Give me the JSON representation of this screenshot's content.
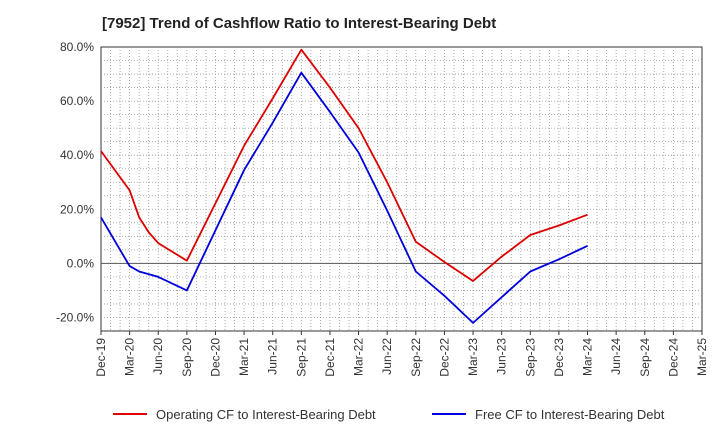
{
  "chart_data": {
    "type": "line",
    "title": "[7952]  Trend of Cashflow Ratio to Interest-Bearing Debt",
    "xlabel": "",
    "ylabel": "",
    "ylim": [
      -25,
      80
    ],
    "y_ticks": [
      -20,
      0,
      20,
      40,
      60,
      80
    ],
    "y_tick_labels": [
      "-20.0%",
      "0.0%",
      "20.0%",
      "40.0%",
      "60.0%",
      "80.0%"
    ],
    "x_tick_labels": [
      "Dec-19",
      "Mar-20",
      "Jun-20",
      "Sep-20",
      "Dec-20",
      "Mar-21",
      "Jun-21",
      "Sep-21",
      "Dec-21",
      "Mar-22",
      "Jun-22",
      "Sep-22",
      "Dec-22",
      "Mar-23",
      "Jun-23",
      "Sep-23",
      "Dec-23",
      "Mar-24",
      "Jun-24",
      "Sep-24",
      "Dec-24",
      "Mar-25"
    ],
    "grid": true,
    "legend_position": "bottom",
    "series": [
      {
        "name": "Operating CF to Interest-Bearing Debt",
        "color": "#dd0000",
        "points": [
          {
            "m": 0,
            "v": 41.5
          },
          {
            "m": 3,
            "v": 27.0
          },
          {
            "m": 4,
            "v": 17.0
          },
          {
            "m": 5,
            "v": 11.5
          },
          {
            "m": 6,
            "v": 7.5
          },
          {
            "m": 9,
            "v": 1.0
          },
          {
            "m": 15,
            "v": 43.5
          },
          {
            "m": 18,
            "v": 61.0
          },
          {
            "m": 21,
            "v": 79.0
          },
          {
            "m": 24,
            "v": 65.0
          },
          {
            "m": 27,
            "v": 50.0
          },
          {
            "m": 30,
            "v": 30.0
          },
          {
            "m": 33,
            "v": 8.0
          },
          {
            "m": 36,
            "v": 0.5
          },
          {
            "m": 39,
            "v": -6.5
          },
          {
            "m": 42,
            "v": 2.5
          },
          {
            "m": 45,
            "v": 10.5
          },
          {
            "m": 48,
            "v": 14.0
          },
          {
            "m": 51,
            "v": 18.0
          }
        ]
      },
      {
        "name": "Free CF to Interest-Bearing Debt",
        "color": "#0000dd",
        "points": [
          {
            "m": 0,
            "v": 17.0
          },
          {
            "m": 3,
            "v": -1.0
          },
          {
            "m": 4,
            "v": -3.0
          },
          {
            "m": 6,
            "v": -5.0
          },
          {
            "m": 9,
            "v": -10.0
          },
          {
            "m": 15,
            "v": 34.5
          },
          {
            "m": 18,
            "v": 52.0
          },
          {
            "m": 21,
            "v": 70.5
          },
          {
            "m": 24,
            "v": 56.0
          },
          {
            "m": 27,
            "v": 41.0
          },
          {
            "m": 30,
            "v": 19.5
          },
          {
            "m": 33,
            "v": -3.0
          },
          {
            "m": 36,
            "v": -12.0
          },
          {
            "m": 39,
            "v": -22.0
          },
          {
            "m": 42,
            "v": -12.5
          },
          {
            "m": 45,
            "v": -3.0
          },
          {
            "m": 48,
            "v": 1.5
          },
          {
            "m": 51,
            "v": 6.5
          }
        ]
      }
    ]
  }
}
